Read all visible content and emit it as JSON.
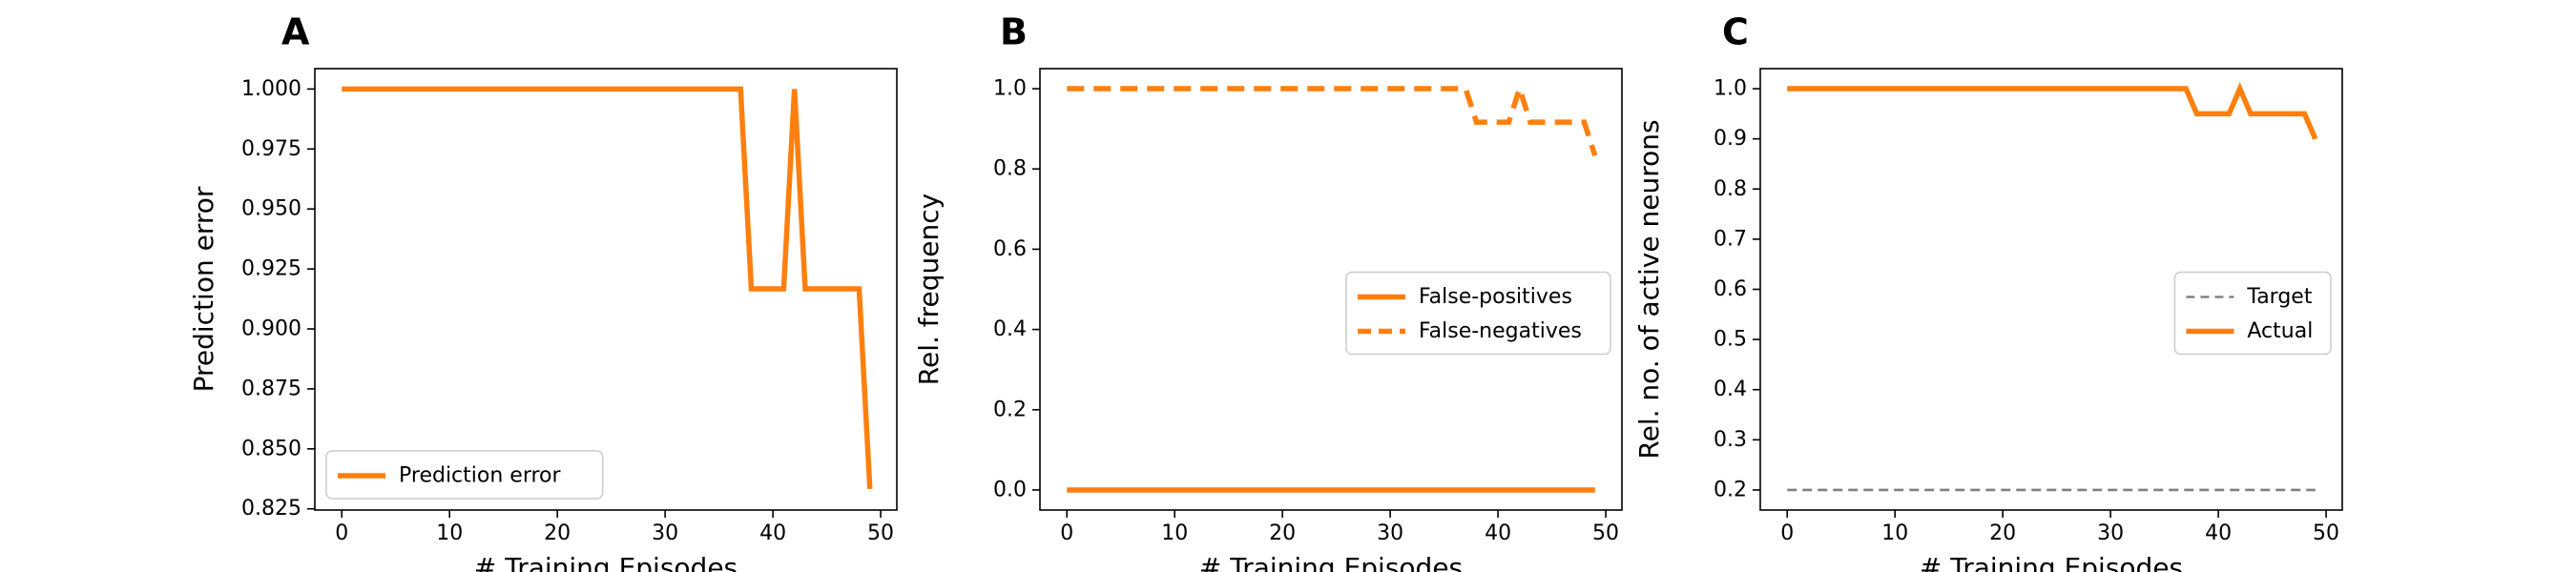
{
  "chart_data": [
    {
      "panel_letter": "A",
      "type": "line",
      "xlabel": "# Training Episodes",
      "ylabel": "Prediction error",
      "xlim": [
        -2.5,
        51.5
      ],
      "ylim": [
        0.8245,
        1.0085
      ],
      "x_ticks": [
        0,
        10,
        20,
        30,
        40,
        50
      ],
      "x_tick_labels": [
        "0",
        "10",
        "20",
        "30",
        "40",
        "50"
      ],
      "y_ticks": [
        0.825,
        0.85,
        0.875,
        0.9,
        0.925,
        0.95,
        0.975,
        1.0
      ],
      "y_tick_labels": [
        "0.825",
        "0.850",
        "0.875",
        "0.900",
        "0.925",
        "0.950",
        "0.975",
        "1.000"
      ],
      "legend_position": "lower-left",
      "series": [
        {
          "name": "Prediction error",
          "color": "#ff7f0e",
          "dash": "solid",
          "x": [
            0,
            37,
            38,
            41,
            42,
            43,
            48,
            49
          ],
          "y": [
            1.0,
            1.0,
            0.9167,
            0.9167,
            1.0,
            0.9167,
            0.9167,
            0.8333
          ]
        }
      ]
    },
    {
      "panel_letter": "B",
      "type": "line",
      "xlabel": "# Training Episodes",
      "ylabel": "Rel. frequency",
      "xlim": [
        -2.5,
        51.5
      ],
      "ylim": [
        -0.05,
        1.05
      ],
      "x_ticks": [
        0,
        10,
        20,
        30,
        40,
        50
      ],
      "x_tick_labels": [
        "0",
        "10",
        "20",
        "30",
        "40",
        "50"
      ],
      "y_ticks": [
        0,
        0.2,
        0.4,
        0.6,
        0.8,
        1.0
      ],
      "y_tick_labels": [
        "0.0",
        "0.2",
        "0.4",
        "0.6",
        "0.8",
        "1.0"
      ],
      "legend_position": "center-right",
      "series": [
        {
          "name": "False-positives",
          "color": "#ff7f0e",
          "dash": "solid",
          "x": [
            0,
            49
          ],
          "y": [
            0.0,
            0.0
          ]
        },
        {
          "name": "False-negatives",
          "color": "#ff7f0e",
          "dash": "dashed",
          "x": [
            0,
            37,
            38,
            41,
            42,
            43,
            48,
            49
          ],
          "y": [
            1.0,
            1.0,
            0.9167,
            0.9167,
            1.0,
            0.9167,
            0.9167,
            0.8333
          ]
        }
      ]
    },
    {
      "panel_letter": "C",
      "type": "line",
      "xlabel": "# Training Episodes",
      "ylabel": "Rel. no. of active neurons",
      "xlim": [
        -2.5,
        51.5
      ],
      "ylim": [
        0.16,
        1.04
      ],
      "x_ticks": [
        0,
        10,
        20,
        30,
        40,
        50
      ],
      "x_tick_labels": [
        "0",
        "10",
        "20",
        "30",
        "40",
        "50"
      ],
      "y_ticks": [
        0.2,
        0.3,
        0.4,
        0.5,
        0.6,
        0.7,
        0.8,
        0.9,
        1.0
      ],
      "y_tick_labels": [
        "0.2",
        "0.3",
        "0.4",
        "0.5",
        "0.6",
        "0.7",
        "0.8",
        "0.9",
        "1.0"
      ],
      "legend_position": "center-right",
      "series": [
        {
          "name": "Target",
          "color": "#808080",
          "dash": "dashed-thin",
          "x": [
            0,
            49
          ],
          "y": [
            0.2,
            0.2
          ]
        },
        {
          "name": "Actual",
          "color": "#ff7f0e",
          "dash": "solid",
          "x": [
            0,
            37,
            38,
            41,
            42,
            43,
            48,
            49
          ],
          "y": [
            1.0,
            1.0,
            0.95,
            0.95,
            1.0,
            0.95,
            0.95,
            0.9
          ]
        }
      ]
    }
  ]
}
